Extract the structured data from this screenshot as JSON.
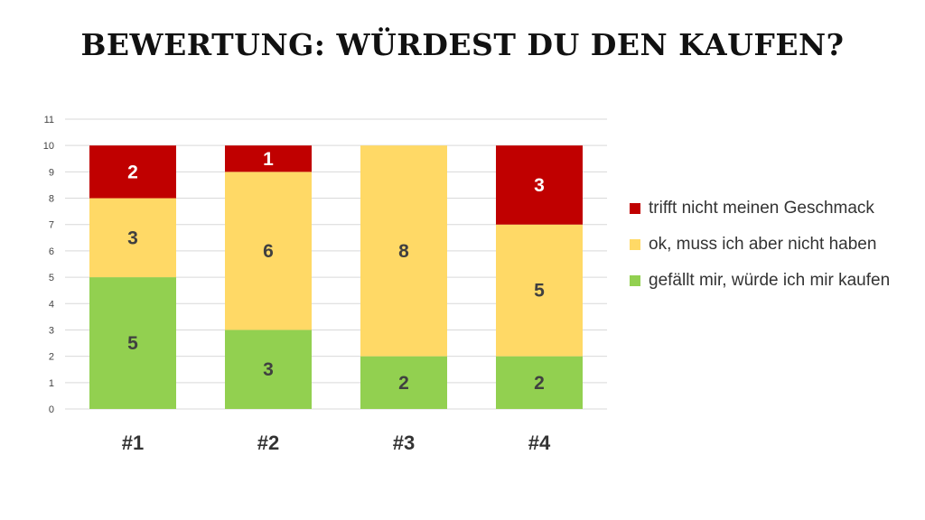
{
  "title": "BEWERTUNG: WÜRDEST DU DEN KAUFEN?",
  "chart_data": {
    "type": "bar",
    "stacked": true,
    "categories": [
      "#1",
      "#2",
      "#3",
      "#4"
    ],
    "series": [
      {
        "name": "gefällt mir, würde ich mir kaufen",
        "values": [
          5,
          3,
          2,
          2
        ],
        "color": "#92D050"
      },
      {
        "name": "ok, muss ich aber nicht haben",
        "values": [
          3,
          6,
          8,
          5
        ],
        "color": "#FFD966"
      },
      {
        "name": "trifft nicht meinen Geschmack",
        "values": [
          2,
          1,
          0,
          3
        ],
        "color": "#C00000"
      }
    ],
    "data_label_colors": {
      "gefällt mir, würde ich mir kaufen": "#404040",
      "ok, muss ich aber nicht haben": "#404040",
      "trifft nicht meinen Geschmack": "#ffffff"
    },
    "ylim": [
      0,
      11
    ],
    "yticks": [
      0,
      1,
      2,
      3,
      4,
      5,
      6,
      7,
      8,
      9,
      10,
      11
    ],
    "grid": true,
    "legend_position": "right"
  },
  "legend": [
    {
      "label": "trifft nicht meinen Geschmack",
      "color": "#C00000"
    },
    {
      "label": "ok, muss ich aber nicht haben",
      "color": "#FFD966"
    },
    {
      "label": "gefällt mir, würde ich mir kaufen",
      "color": "#92D050"
    }
  ]
}
